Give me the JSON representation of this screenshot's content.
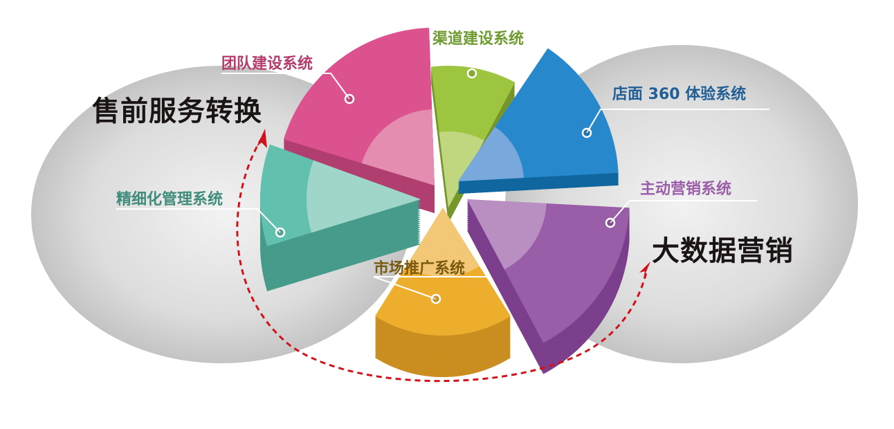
{
  "headings": {
    "left": "售前服务转换",
    "right": "大数据营销"
  },
  "segments": [
    {
      "label": "渠道建设系统",
      "color": "#9dc53f",
      "inner": "#c0d77f",
      "side": "#76962d",
      "text_color": "#6e9a30"
    },
    {
      "label": "店面 360 体验系统",
      "color": "#2789cc",
      "inner": "#79a9dc",
      "side": "#10669e",
      "text_color": "#1f5f96"
    },
    {
      "label": "主动营销系统",
      "color": "#9a5ea8",
      "inner": "#b88fc0",
      "side": "#7b3f8c",
      "text_color": "#9a5ea8"
    },
    {
      "label": "市场推广系统",
      "color": "#eeae2d",
      "inner": "#f2c775",
      "side": "#c98e1f",
      "text_color": "#7a5a10"
    },
    {
      "label": "精细化管理系统",
      "color": "#61c0ae",
      "inner": "#a0d6c9",
      "side": "#479b8a",
      "text_color": "#3f8c7a"
    },
    {
      "label": "团队建设系统",
      "color": "#db528e",
      "inner": "#e58db1",
      "side": "#b03e6f",
      "text_color": "#b43c6c"
    }
  ],
  "colors": {
    "arrow": "#d0121b",
    "ellipse": "#c8c8c8"
  }
}
